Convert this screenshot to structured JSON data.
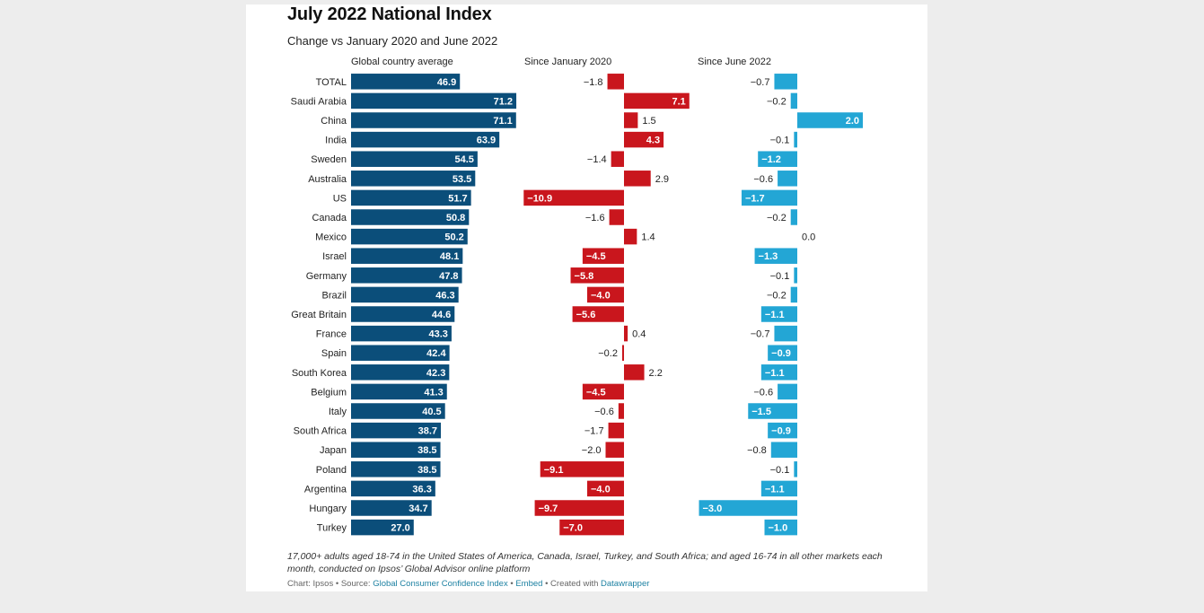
{
  "title": "July 2022 National Index",
  "subtitle": "Change vs January 2020 and June 2022",
  "colors": {
    "global": "#0b4e7a",
    "since_jan_2020": "#c9161d",
    "since_jun_2022": "#23a6d5"
  },
  "chart_data": {
    "type": "bar",
    "orientation": "horizontal",
    "categories": [
      "TOTAL",
      "Saudi Arabia",
      "China",
      "India",
      "Sweden",
      "Australia",
      "US",
      "Canada",
      "Mexico",
      "Israel",
      "Germany",
      "Brazil",
      "Great Britain",
      "France",
      "Spain",
      "South Korea",
      "Belgium",
      "Italy",
      "South Africa",
      "Japan",
      "Poland",
      "Argentina",
      "Hungary",
      "Turkey"
    ],
    "series": [
      {
        "name": "Global country average",
        "values": [
          46.9,
          71.2,
          71.1,
          63.9,
          54.5,
          53.5,
          51.7,
          50.8,
          50.2,
          48.1,
          47.8,
          46.3,
          44.6,
          43.3,
          42.4,
          42.3,
          41.3,
          40.5,
          38.7,
          38.5,
          38.5,
          36.3,
          34.7,
          27.0
        ],
        "labels": [
          "46.9",
          "71.2",
          "71.1",
          "63.9",
          "54.5",
          "53.5",
          "51.7",
          "50.8",
          "50.2",
          "48.1",
          "47.8",
          "46.3",
          "44.6",
          "43.3",
          "42.4",
          "42.3",
          "41.3",
          "40.5",
          "38.7",
          "38.5",
          "38.5",
          "36.3",
          "34.7",
          "27.0"
        ]
      },
      {
        "name": "Since January 2020",
        "values": [
          -1.8,
          7.1,
          1.5,
          4.3,
          -1.4,
          2.9,
          -10.9,
          -1.6,
          1.4,
          -4.5,
          -5.8,
          -4.0,
          -5.6,
          0.4,
          -0.2,
          2.2,
          -4.5,
          -0.6,
          -1.7,
          -2.0,
          -9.1,
          -4.0,
          -9.7,
          -7.0
        ],
        "labels": [
          "−1.8",
          "7.1",
          "1.5",
          "4.3",
          "−1.4",
          "2.9",
          "−10.9",
          "−1.6",
          "1.4",
          "−4.5",
          "−5.8",
          "−4.0",
          "−5.6",
          "0.4",
          "−0.2",
          "2.2",
          "−4.5",
          "−0.6",
          "−1.7",
          "−2.0",
          "−9.1",
          "−4.0",
          "−9.7",
          "−7.0"
        ]
      },
      {
        "name": "Since June 2022",
        "values": [
          -0.7,
          -0.2,
          2.0,
          -0.1,
          -1.2,
          -0.6,
          -1.7,
          -0.2,
          0.0,
          -1.3,
          -0.1,
          -0.2,
          -1.1,
          -0.7,
          -0.9,
          -1.1,
          -0.6,
          -1.5,
          -0.9,
          -0.8,
          -0.1,
          -1.1,
          -3.0,
          -1.0
        ],
        "labels": [
          "−0.7",
          "−0.2",
          "2.0",
          "−0.1",
          "−1.2",
          "−0.6",
          "−1.7",
          "−0.2",
          "0.0",
          "−1.3",
          "−0.1",
          "−0.2",
          "−1.1",
          "−0.7",
          "−0.9",
          "−1.1",
          "−0.6",
          "−1.5",
          "−0.9",
          "−0.8",
          "−0.1",
          "−1.1",
          "−3.0",
          "−1.0"
        ]
      }
    ]
  },
  "notes": "17,000+ adults aged 18-74 in the United States of America, Canada, Israel, Turkey, and South Africa; and aged 16-74 in all other markets each month, conducted on Ipsos’ Global Advisor online platform",
  "footer": {
    "prefix": "Chart: Ipsos • Source: ",
    "source_link": "Global Consumer Confidence Index",
    "sep1": " • ",
    "embed_link": "Embed",
    "sep2": " • Created with ",
    "tool_link": "Datawrapper"
  }
}
